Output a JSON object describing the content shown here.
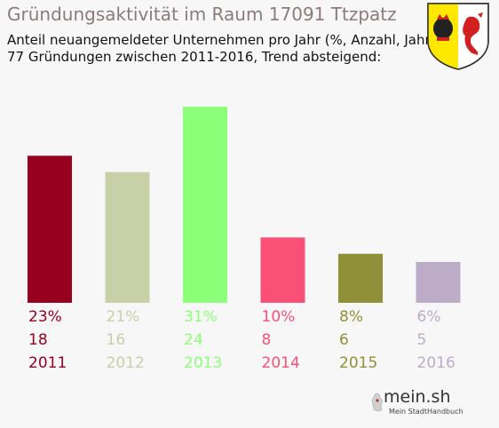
{
  "header": {
    "title": "Gründungsaktivität im Raum 17091 Ttzpatz",
    "subtitle_line1": "Anteil neuangemeldeter Unternehmen pro Jahr (%, Anzahl, Jahr)",
    "subtitle_line2": "77 Gründungen zwischen 2011-2016, Trend absteigend:"
  },
  "brand": {
    "name": "mein.sh",
    "tagline": "Mein StadtHandbuch"
  },
  "chart_data": {
    "type": "bar",
    "title": "Gründungsaktivität im Raum 17091 Ttzpatz",
    "categories": [
      "2011",
      "2012",
      "2013",
      "2014",
      "2015",
      "2016"
    ],
    "percent_labels": [
      "23%",
      "21%",
      "31%",
      "10%",
      "8%",
      "6%"
    ],
    "values": [
      18,
      16,
      24,
      8,
      6,
      5
    ],
    "colors": [
      "#98001f",
      "#c8d0a8",
      "#8cff78",
      "#fa5078",
      "#909038",
      "#bcacc8"
    ],
    "xlabel": "",
    "ylabel": "",
    "grid": false,
    "legend": "none"
  }
}
